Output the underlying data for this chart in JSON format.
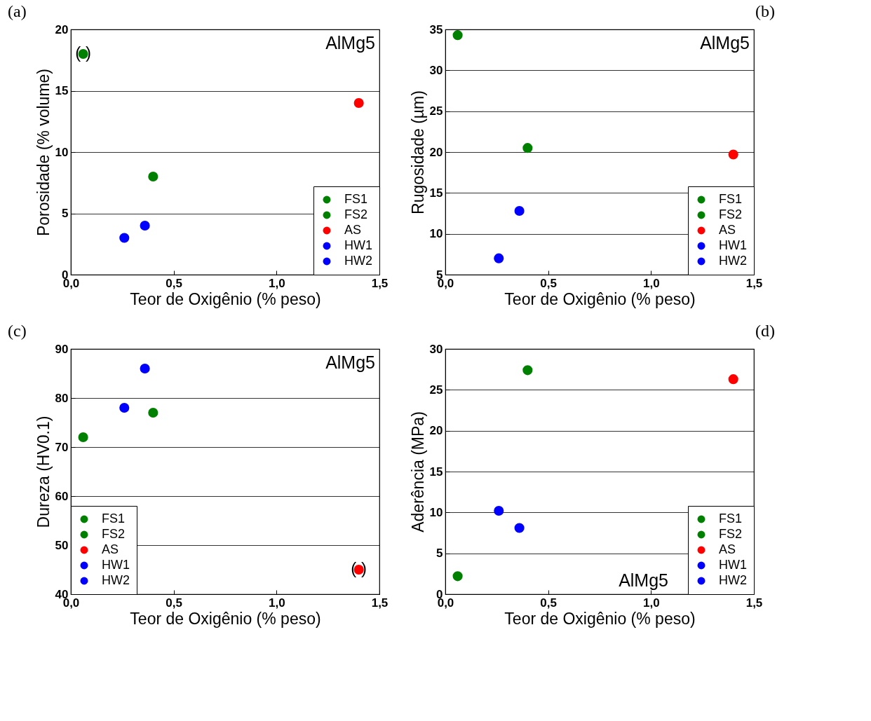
{
  "chart_data": [
    {
      "type": "scatter",
      "title": "(a)",
      "xlabel": "Teor de Oxigênio (% peso)",
      "ylabel": "Porosidade (% volume)",
      "xlim": [
        0,
        1.5
      ],
      "ylim": [
        0,
        20
      ],
      "xticks": [
        {
          "value": 0,
          "label": "0,0"
        },
        {
          "value": 0.5,
          "label": "0,5"
        },
        {
          "value": 1,
          "label": "1,0"
        },
        {
          "value": 1.5,
          "label": "1,5"
        }
      ],
      "yticks": [
        0,
        5,
        10,
        15,
        20
      ],
      "grid": "y",
      "legend": "bottom right",
      "marker": "circle",
      "annotations": [
        "AlMg5",
        {
          "text": "(  )",
          "x": 0.06,
          "y": 18
        }
      ],
      "series": [
        {
          "name": "FS1",
          "color": "#008000",
          "x": [
            0.4
          ],
          "values": [
            8
          ]
        },
        {
          "name": "FS2",
          "color": "#008000",
          "x": [
            0.06
          ],
          "values": [
            18
          ]
        },
        {
          "name": "AS",
          "color": "#ff0000",
          "x": [
            1.4
          ],
          "values": [
            14
          ]
        },
        {
          "name": "HW1",
          "color": "#0000ff",
          "x": [
            0.26
          ],
          "values": [
            3
          ]
        },
        {
          "name": "HW2",
          "color": "#0000ff",
          "x": [
            0.36
          ],
          "values": [
            4
          ]
        }
      ]
    },
    {
      "type": "scatter",
      "title": "(b)",
      "xlabel": "Teor de Oxigênio (% peso)",
      "ylabel": "Rugosidade (µm)",
      "xlim": [
        0,
        1.5
      ],
      "ylim": [
        5,
        35
      ],
      "xticks": [
        {
          "value": 0,
          "label": "0,0"
        },
        {
          "value": 0.5,
          "label": "0,5"
        },
        {
          "value": 1,
          "label": "1,0"
        },
        {
          "value": 1.5,
          "label": "1,5"
        }
      ],
      "yticks": [
        5,
        10,
        15,
        20,
        25,
        30,
        35
      ],
      "grid": "y",
      "legend": "bottom right",
      "marker": "circle",
      "annotations": [
        "AlMg5"
      ],
      "series": [
        {
          "name": "FS1",
          "color": "#008000",
          "x": [
            0.4
          ],
          "values": [
            20.5
          ]
        },
        {
          "name": "FS2",
          "color": "#008000",
          "x": [
            0.06
          ],
          "values": [
            34.3
          ]
        },
        {
          "name": "AS",
          "color": "#ff0000",
          "x": [
            1.4
          ],
          "values": [
            19.7
          ]
        },
        {
          "name": "HW1",
          "color": "#0000ff",
          "x": [
            0.26
          ],
          "values": [
            7.0
          ]
        },
        {
          "name": "HW2",
          "color": "#0000ff",
          "x": [
            0.36
          ],
          "values": [
            12.8
          ]
        }
      ]
    },
    {
      "type": "scatter",
      "title": "(c)",
      "xlabel": "Teor de Oxigênio (% peso)",
      "ylabel": "Dureza (HV0.1)",
      "xlim": [
        0,
        1.5
      ],
      "ylim": [
        40,
        90
      ],
      "xticks": [
        {
          "value": 0,
          "label": "0,0"
        },
        {
          "value": 0.5,
          "label": "0,5"
        },
        {
          "value": 1,
          "label": "1,0"
        },
        {
          "value": 1.5,
          "label": "1,5"
        }
      ],
      "yticks": [
        40,
        50,
        60,
        70,
        80,
        90
      ],
      "grid": "y",
      "legend": "bottom left",
      "marker": "circle",
      "annotations": [
        "AlMg5",
        {
          "text": "(  )",
          "x": 1.4,
          "y": 45
        }
      ],
      "series": [
        {
          "name": "FS1",
          "color": "#008000",
          "x": [
            0.4
          ],
          "values": [
            77
          ]
        },
        {
          "name": "FS2",
          "color": "#008000",
          "x": [
            0.06
          ],
          "values": [
            72
          ]
        },
        {
          "name": "AS",
          "color": "#ff0000",
          "x": [
            1.4
          ],
          "values": [
            45
          ]
        },
        {
          "name": "HW1",
          "color": "#0000ff",
          "x": [
            0.26
          ],
          "values": [
            78
          ]
        },
        {
          "name": "HW2",
          "color": "#0000ff",
          "x": [
            0.36
          ],
          "values": [
            86
          ]
        }
      ]
    },
    {
      "type": "scatter",
      "title": "(d)",
      "xlabel": "Teor de Oxigênio (% peso)",
      "ylabel": "Aderência (MPa)",
      "xlim": [
        0,
        1.5
      ],
      "ylim": [
        0,
        30
      ],
      "xticks": [
        {
          "value": 0,
          "label": "0,0"
        },
        {
          "value": 0.5,
          "label": "0,5"
        },
        {
          "value": 1,
          "label": "1,0"
        },
        {
          "value": 1.5,
          "label": "1,5"
        }
      ],
      "yticks": [
        0,
        5,
        10,
        15,
        20,
        25,
        30
      ],
      "grid": "y",
      "legend": "bottom right",
      "marker": "circle",
      "annotations": [
        "AlMg5"
      ],
      "series": [
        {
          "name": "FS1",
          "color": "#008000",
          "x": [
            0.4
          ],
          "values": [
            27.4
          ]
        },
        {
          "name": "FS2",
          "color": "#008000",
          "x": [
            0.06
          ],
          "values": [
            2.2
          ]
        },
        {
          "name": "AS",
          "color": "#ff0000",
          "x": [
            1.4
          ],
          "values": [
            26.3
          ]
        },
        {
          "name": "HW1",
          "color": "#0000ff",
          "x": [
            0.26
          ],
          "values": [
            10.2
          ]
        },
        {
          "name": "HW2",
          "color": "#0000ff",
          "x": [
            0.36
          ],
          "values": [
            8.1
          ]
        }
      ]
    }
  ]
}
